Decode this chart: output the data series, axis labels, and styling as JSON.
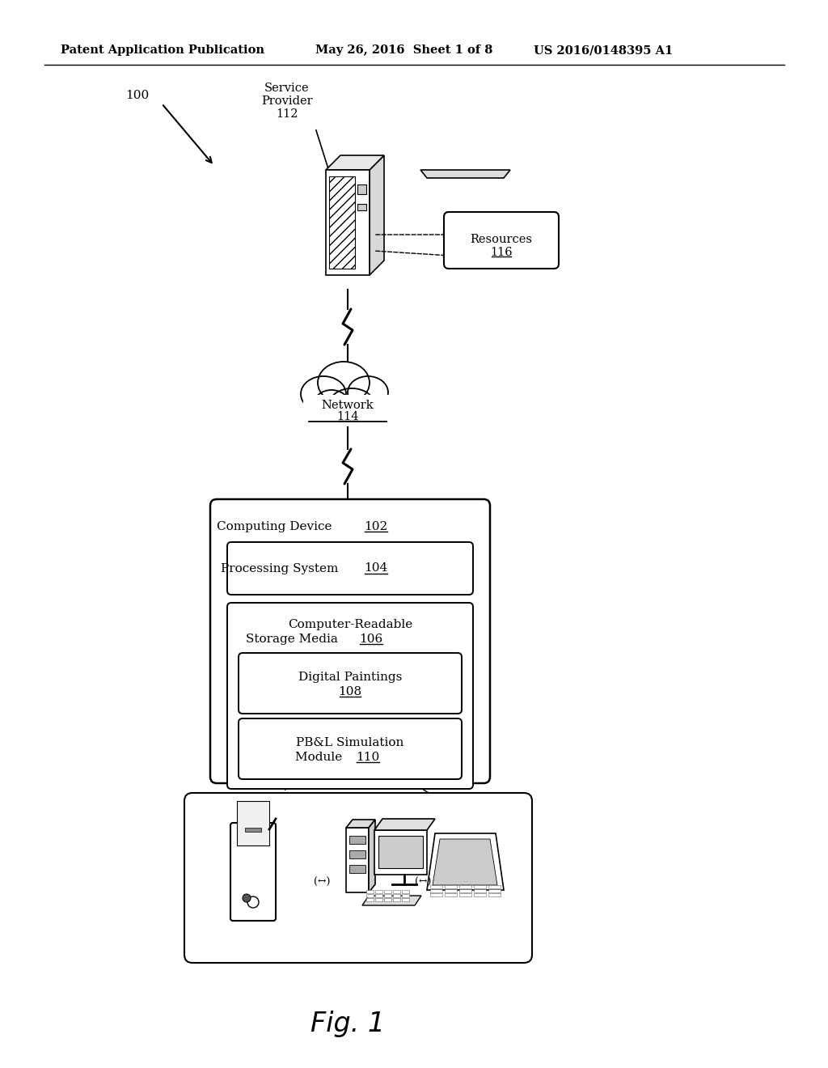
{
  "background_color": "#ffffff",
  "header_left": "Patent Application Publication",
  "header_mid": "May 26, 2016  Sheet 1 of 8",
  "header_right": "US 2016/0148395 A1",
  "fig_label": "Fig. 1",
  "label_100": "100",
  "label_112": "Service\nProvider\n112",
  "label_116": "Resources\n116",
  "label_114": "Network\n114",
  "label_102": "Computing Device 102",
  "label_104": "Processing System 104",
  "label_106": "Computer-Readable\nStorage Media 106",
  "label_108": "Digital Paintings\n108",
  "label_110": "PB&L Simulation\nModule 110"
}
